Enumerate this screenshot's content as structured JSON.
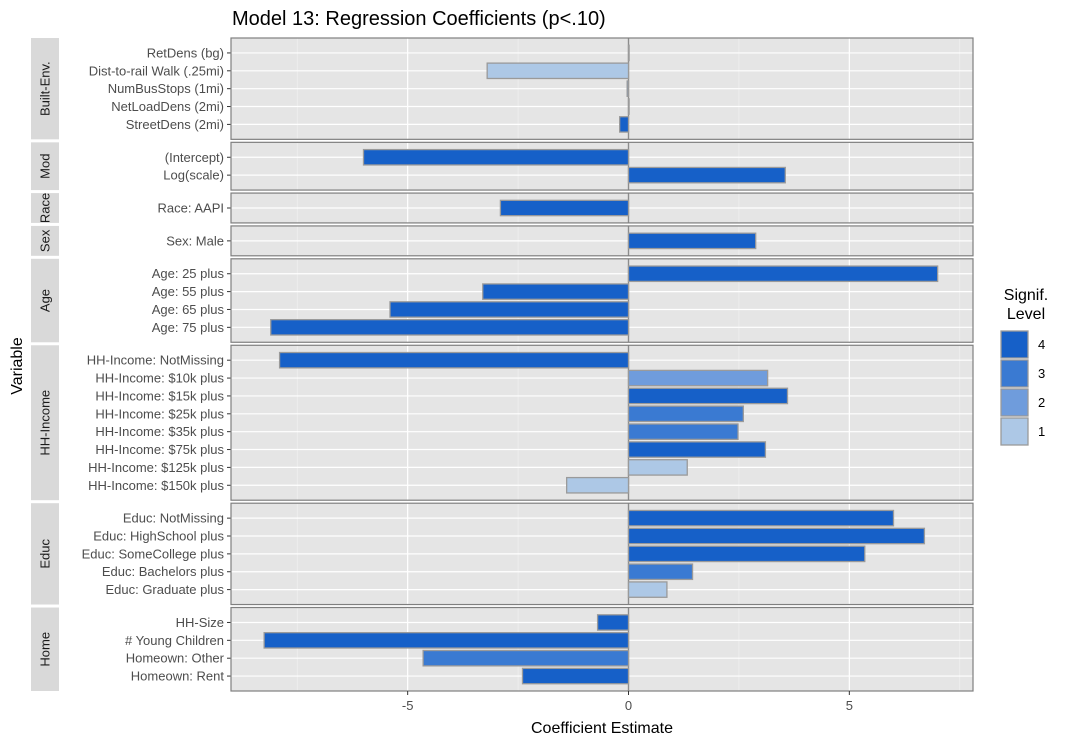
{
  "chart_data": {
    "type": "bar",
    "orientation": "horizontal",
    "faceted": true,
    "title": "Model 13: Regression Coefficients (p<.10)",
    "xlabel": "Coefficient Estimate",
    "ylabel": "Variable",
    "xlim": [
      -9,
      7.8
    ],
    "xticks": [
      -5,
      0,
      5
    ],
    "xtick_labels": [
      "-5",
      "0",
      "5"
    ],
    "grid": true,
    "legend": {
      "title_lines": [
        "Signif.",
        "Level"
      ],
      "position": "right",
      "entries": [
        {
          "label": "4",
          "color": "#1660c8"
        },
        {
          "label": "3",
          "color": "#3a7ad2"
        },
        {
          "label": "2",
          "color": "#6f9cdc"
        },
        {
          "label": "1",
          "color": "#adc8e6"
        }
      ]
    },
    "facets": [
      {
        "label": "Built-Env.",
        "bars": [
          {
            "label": "RetDens (bg)",
            "value": 0.0,
            "level": 4
          },
          {
            "label": "Dist-to-rail Walk (.25mi)",
            "value": -3.2,
            "level": 1
          },
          {
            "label": "NumBusStops (1mi)",
            "value": -0.03,
            "level": 2
          },
          {
            "label": "NetLoadDens (2mi)",
            "value": 0.0,
            "level": 4
          },
          {
            "label": "StreetDens (2mi)",
            "value": -0.2,
            "level": 4
          }
        ]
      },
      {
        "label": "Mod",
        "bars": [
          {
            "label": "(Intercept)",
            "value": -6.0,
            "level": 4
          },
          {
            "label": "Log(scale)",
            "value": 3.55,
            "level": 4
          }
        ]
      },
      {
        "label": "Race",
        "bars": [
          {
            "label": "Race: AAPI",
            "value": -2.9,
            "level": 4
          }
        ]
      },
      {
        "label": "Sex",
        "bars": [
          {
            "label": "Sex: Male",
            "value": 2.88,
            "level": 4
          }
        ]
      },
      {
        "label": "Age",
        "bars": [
          {
            "label": "Age: 25 plus",
            "value": 7.0,
            "level": 4
          },
          {
            "label": "Age: 55 plus",
            "value": -3.3,
            "level": 4
          },
          {
            "label": "Age: 65 plus",
            "value": -5.4,
            "level": 4
          },
          {
            "label": "Age: 75 plus",
            "value": -8.1,
            "level": 4
          }
        ]
      },
      {
        "label": "HH-Income",
        "bars": [
          {
            "label": "HH-Income: NotMissing",
            "value": -7.9,
            "level": 4
          },
          {
            "label": "HH-Income:  $10k plus",
            "value": 3.15,
            "level": 2
          },
          {
            "label": "HH-Income:  $15k plus",
            "value": 3.6,
            "level": 4
          },
          {
            "label": "HH-Income:  $25k plus",
            "value": 2.6,
            "level": 3
          },
          {
            "label": "HH-Income:  $35k plus",
            "value": 2.48,
            "level": 3
          },
          {
            "label": "HH-Income:  $75k plus",
            "value": 3.1,
            "level": 4
          },
          {
            "label": "HH-Income: $125k plus",
            "value": 1.33,
            "level": 1
          },
          {
            "label": "HH-Income: $150k plus",
            "value": -1.4,
            "level": 1
          }
        ]
      },
      {
        "label": "Educ",
        "bars": [
          {
            "label": "Educ: NotMissing",
            "value": 6.0,
            "level": 4
          },
          {
            "label": "Educ: HighSchool plus",
            "value": 6.7,
            "level": 4
          },
          {
            "label": "Educ: SomeCollege plus",
            "value": 5.35,
            "level": 4
          },
          {
            "label": "Educ: Bachelors plus",
            "value": 1.45,
            "level": 3
          },
          {
            "label": "Educ: Graduate plus",
            "value": 0.87,
            "level": 1
          }
        ]
      },
      {
        "label": "Home",
        "bars": [
          {
            "label": "HH-Size",
            "value": -0.7,
            "level": 4
          },
          {
            "label": "# Young Children",
            "value": -8.25,
            "level": 4
          },
          {
            "label": "Homeown: Other",
            "value": -4.65,
            "level": 3
          },
          {
            "label": "Homeown: Rent",
            "value": -2.4,
            "level": 4
          }
        ]
      }
    ]
  }
}
